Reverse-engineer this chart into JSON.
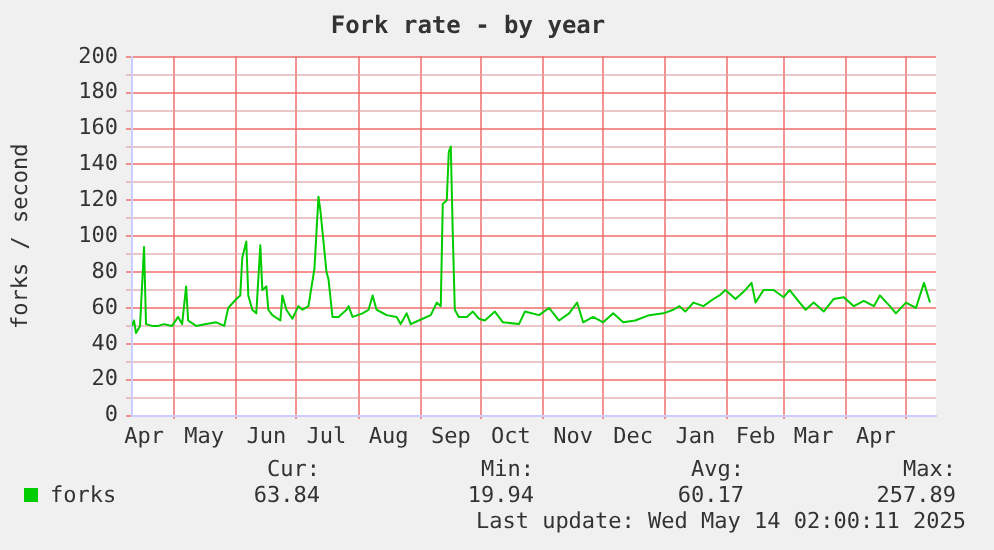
{
  "chart_data": {
    "type": "line",
    "title": "Fork rate - by year",
    "ylabel": "forks / second",
    "x": [
      "2024-04-10",
      "2024-04-11",
      "2024-04-12",
      "2024-04-14",
      "2024-04-16",
      "2024-04-17",
      "2024-04-20",
      "2024-04-23",
      "2024-04-26",
      "2024-04-30",
      "2024-05-03",
      "2024-05-05",
      "2024-05-07",
      "2024-05-08",
      "2024-05-12",
      "2024-05-17",
      "2024-05-22",
      "2024-05-26",
      "2024-05-28",
      "2024-06-01",
      "2024-06-03",
      "2024-06-04",
      "2024-06-06",
      "2024-06-07",
      "2024-06-09",
      "2024-06-11",
      "2024-06-13",
      "2024-06-14",
      "2024-06-16",
      "2024-06-17",
      "2024-06-19",
      "2024-06-23",
      "2024-06-24",
      "2024-06-26",
      "2024-06-29",
      "2024-07-02",
      "2024-07-04",
      "2024-07-07",
      "2024-07-10",
      "2024-07-12",
      "2024-07-13",
      "2024-07-16",
      "2024-07-17",
      "2024-07-19",
      "2024-07-22",
      "2024-07-26",
      "2024-07-27",
      "2024-07-29",
      "2024-08-03",
      "2024-08-06",
      "2024-08-08",
      "2024-08-10",
      "2024-08-15",
      "2024-08-20",
      "2024-08-22",
      "2024-08-25",
      "2024-08-27",
      "2024-08-31",
      "2024-09-06",
      "2024-09-09",
      "2024-09-11",
      "2024-09-12",
      "2024-09-14",
      "2024-09-15",
      "2024-09-16",
      "2024-09-17",
      "2024-09-18",
      "2024-09-20",
      "2024-09-24",
      "2024-09-27",
      "2024-09-30",
      "2024-10-03",
      "2024-10-08",
      "2024-10-12",
      "2024-10-20",
      "2024-10-23",
      "2024-10-30",
      "2024-11-04",
      "2024-11-09",
      "2024-11-14",
      "2024-11-18",
      "2024-11-21",
      "2024-11-26",
      "2024-12-01",
      "2024-12-06",
      "2024-12-11",
      "2024-12-17",
      "2024-12-24",
      "2024-12-31",
      "2025-01-05",
      "2025-01-08",
      "2025-01-11",
      "2025-01-15",
      "2025-01-20",
      "2025-01-25",
      "2025-01-28",
      "2025-01-31",
      "2025-02-05",
      "2025-02-09",
      "2025-02-13",
      "2025-02-15",
      "2025-02-19",
      "2025-02-24",
      "2025-03-01",
      "2025-03-04",
      "2025-03-09",
      "2025-03-12",
      "2025-03-16",
      "2025-03-21",
      "2025-03-26",
      "2025-03-31",
      "2025-04-05",
      "2025-04-10",
      "2025-04-15",
      "2025-04-18",
      "2025-04-23",
      "2025-04-26",
      "2025-05-01",
      "2025-05-06",
      "2025-05-10",
      "2025-05-13"
    ],
    "series": [
      {
        "name": "forks",
        "color": "#00cc00",
        "values": [
          50,
          53,
          46,
          50,
          94,
          51,
          50,
          50,
          51,
          50,
          55,
          51,
          72,
          53,
          50,
          51,
          52,
          50,
          60,
          65,
          67,
          88,
          97,
          67,
          59,
          57,
          95,
          70,
          72,
          59,
          56,
          53,
          67,
          59,
          54,
          61,
          59,
          61,
          82,
          122,
          114,
          80,
          76,
          55,
          55,
          59,
          61,
          55,
          57,
          59,
          67,
          59,
          56,
          55,
          51,
          57,
          51,
          53,
          56,
          63,
          61,
          118,
          120,
          147,
          150,
          101,
          59,
          55,
          55,
          58,
          54,
          53,
          58,
          52,
          51,
          58,
          56,
          60,
          53,
          57,
          63,
          52,
          55,
          52,
          57,
          52,
          53,
          56,
          57,
          59,
          61,
          58,
          63,
          61,
          65,
          67,
          70,
          65,
          69,
          74,
          63,
          70,
          70,
          66,
          70,
          63,
          59,
          63,
          58,
          65,
          66,
          61,
          64,
          61,
          67,
          61,
          57,
          63,
          60,
          74,
          63
        ]
      }
    ],
    "xlim": [
      "2024-04-10",
      "2025-05-16"
    ],
    "xticks": [
      {
        "value": "2024-04-16",
        "label": "Apr"
      },
      {
        "value": "2024-05-01",
        "label": null
      },
      {
        "value": "2024-05-16",
        "label": "May"
      },
      {
        "value": "2024-06-01",
        "label": null
      },
      {
        "value": "2024-06-16",
        "label": "Jun"
      },
      {
        "value": "2024-07-01",
        "label": null
      },
      {
        "value": "2024-07-16",
        "label": "Jul"
      },
      {
        "value": "2024-08-01",
        "label": null
      },
      {
        "value": "2024-08-16",
        "label": "Aug"
      },
      {
        "value": "2024-09-01",
        "label": null
      },
      {
        "value": "2024-09-16",
        "label": "Sep"
      },
      {
        "value": "2024-10-01",
        "label": null
      },
      {
        "value": "2024-10-16",
        "label": "Oct"
      },
      {
        "value": "2024-11-01",
        "label": null
      },
      {
        "value": "2024-11-16",
        "label": "Nov"
      },
      {
        "value": "2024-12-01",
        "label": null
      },
      {
        "value": "2024-12-16",
        "label": "Dec"
      },
      {
        "value": "2025-01-01",
        "label": null
      },
      {
        "value": "2025-01-16",
        "label": "Jan"
      },
      {
        "value": "2025-02-01",
        "label": null
      },
      {
        "value": "2025-02-15",
        "label": "Feb"
      },
      {
        "value": "2025-03-01",
        "label": null
      },
      {
        "value": "2025-03-16",
        "label": "Mar"
      },
      {
        "value": "2025-04-01",
        "label": null
      },
      {
        "value": "2025-04-16",
        "label": "Apr"
      },
      {
        "value": "2025-05-01",
        "label": null
      }
    ],
    "ylim": [
      0,
      200
    ],
    "yticks": [
      0,
      {
        "value": 10,
        "label": null
      },
      20,
      {
        "value": 30,
        "label": null
      },
      40,
      {
        "value": 50,
        "label": null
      },
      60,
      {
        "value": 70,
        "label": null
      },
      80,
      {
        "value": 90,
        "label": null
      },
      100,
      {
        "value": 110,
        "label": null
      },
      120,
      {
        "value": 130,
        "label": null
      },
      140,
      {
        "value": 150,
        "label": null
      },
      160,
      {
        "value": 170,
        "label": null
      },
      180,
      {
        "value": 190,
        "label": null
      },
      200
    ],
    "grid": true,
    "legend": "bottom left",
    "marker": "none",
    "line_style": "solid",
    "annotations": [
      "Cur:",
      "Min:",
      "Avg:",
      "Max:",
      "63.84",
      "19.94",
      "60.17",
      "257.89",
      "Last update: Wed May 14 02:00:11 2025"
    ]
  }
}
